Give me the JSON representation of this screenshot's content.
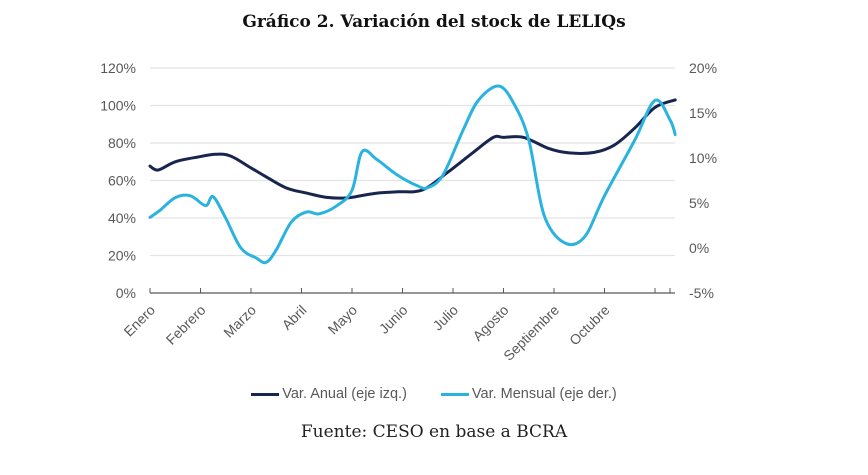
{
  "title": "Gráfico 2. Variación del stock de LELIQs",
  "source": "Fuente: CESO en base a BCRA",
  "chart_data": {
    "type": "line",
    "title": "Gráfico 2. Variación del stock de LELIQs",
    "xlabel": "",
    "ylabel_left": "",
    "ylabel_right": "",
    "categories": [
      "Enero",
      "Febrero",
      "Marzo",
      "Abril",
      "Mayo",
      "Junio",
      "Julio",
      "Agosto",
      "Septiembre",
      "Octubre"
    ],
    "x_unit": "months since start of Enero",
    "xlim": [
      0,
      10.4
    ],
    "y_left": {
      "ylim": [
        0,
        120
      ],
      "ticks": [
        0,
        20,
        40,
        60,
        80,
        100,
        120
      ],
      "tick_labels": [
        "0%",
        "20%",
        "40%",
        "60%",
        "80%",
        "100%",
        "120%"
      ]
    },
    "y_right": {
      "ylim": [
        -5,
        20
      ],
      "ticks": [
        -5,
        0,
        5,
        10,
        15,
        20
      ],
      "tick_labels": [
        "-5%",
        "0%",
        "5%",
        "10%",
        "15%",
        "20%"
      ]
    },
    "grid": true,
    "legend_position": "bottom",
    "series": [
      {
        "name": "Var. Anual (eje izq.)",
        "axis": "left",
        "color": "#17254f",
        "x": [
          0,
          0.16,
          0.5,
          0.94,
          1.3,
          1.6,
          2.0,
          2.3,
          2.7,
          3.1,
          3.5,
          3.9,
          4.2,
          4.5,
          4.9,
          5.4,
          5.9,
          6.4,
          6.8,
          7.0,
          7.4,
          7.9,
          8.3,
          8.8,
          9.2,
          9.6,
          10.0,
          10.4
        ],
        "values": [
          67.7,
          65.6,
          70,
          72.5,
          74,
          73,
          66.7,
          62,
          56,
          53.3,
          51,
          50.7,
          52,
          53.3,
          54,
          55,
          64.5,
          75,
          83,
          83,
          83,
          77,
          74.7,
          75,
          79,
          88,
          99,
          103
        ]
      },
      {
        "name": "Var. Mensual (eje der.)",
        "axis": "right",
        "color": "#2bb3e0",
        "x": [
          0,
          0.2,
          0.5,
          0.8,
          1.1,
          1.25,
          1.5,
          1.8,
          2.1,
          2.3,
          2.5,
          2.8,
          3.1,
          3.35,
          3.7,
          4.0,
          4.2,
          4.5,
          4.9,
          5.3,
          5.5,
          5.8,
          6.2,
          6.5,
          6.9,
          7.2,
          7.5,
          7.8,
          8.2,
          8.6,
          9.0,
          9.6,
          10.0,
          10.3,
          10.4
        ],
        "values": [
          3.4,
          4.2,
          5.6,
          5.8,
          4.7,
          5.7,
          3.3,
          0,
          -1.1,
          -1.6,
          -0.2,
          2.9,
          4,
          3.8,
          4.7,
          6.4,
          10.7,
          9.8,
          8.1,
          6.9,
          6.7,
          8.1,
          13.1,
          16.4,
          18,
          16.1,
          12,
          3.7,
          0.6,
          1.2,
          5.8,
          12,
          16.4,
          14.2,
          12.6
        ]
      }
    ]
  }
}
